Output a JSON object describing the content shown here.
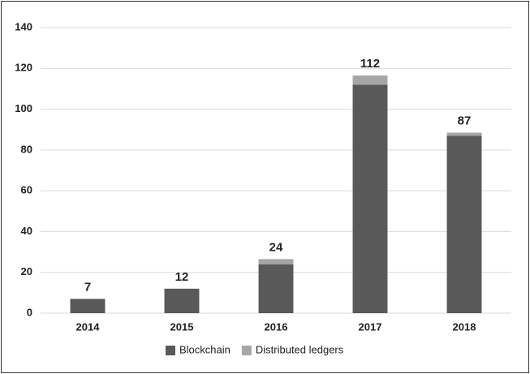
{
  "chart_data": {
    "type": "stacked_bar",
    "categories": [
      "2014",
      "2015",
      "2016",
      "2017",
      "2018"
    ],
    "series": [
      {
        "name": "Blockchain",
        "color": "#595959",
        "values": [
          7,
          12,
          24,
          112,
          87
        ]
      },
      {
        "name": "Distributed ledgers",
        "color": "#a6a6a6",
        "values": [
          0,
          0,
          2.5,
          4.5,
          1.5
        ]
      }
    ],
    "ylim": [
      0,
      140
    ],
    "yticks": [
      0,
      20,
      40,
      60,
      80,
      100,
      120,
      140
    ],
    "grid": true,
    "legend": "bottom"
  }
}
